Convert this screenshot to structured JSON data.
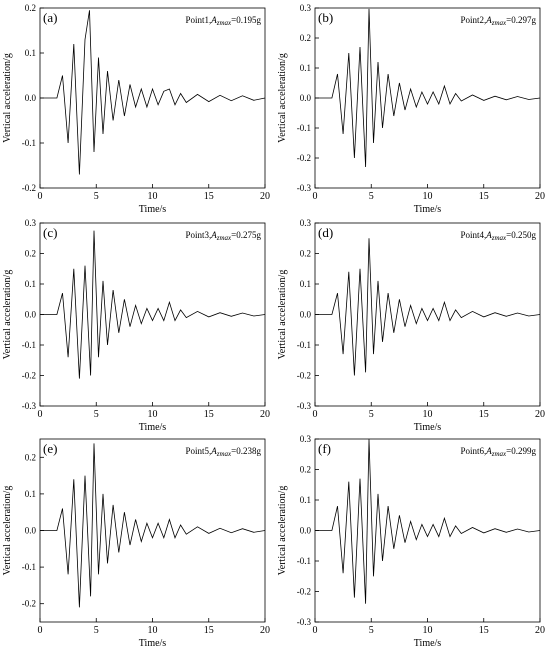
{
  "figure": {
    "panels": [
      {
        "panel_label": "(a)",
        "annotation": {
          "point": "Point1",
          "symbol": "A",
          "subscript": "zmax",
          "value": "=0.195g"
        }
      },
      {
        "panel_label": "(b)",
        "annotation": {
          "point": "Point2",
          "symbol": "A",
          "subscript": "zmax",
          "value": "=0.297g"
        }
      },
      {
        "panel_label": "(c)",
        "annotation": {
          "point": "Point3",
          "symbol": "A",
          "subscript": "zmax",
          "value": "=0.275g"
        }
      },
      {
        "panel_label": "(d)",
        "annotation": {
          "point": "Point4",
          "symbol": "A",
          "subscript": "zmax",
          "value": "=0.250g"
        }
      },
      {
        "panel_label": "(e)",
        "annotation": {
          "point": "Point5",
          "symbol": "A",
          "subscript": "zmax",
          "value": "=0.238g"
        }
      },
      {
        "panel_label": "(f)",
        "annotation": {
          "point": "Point6",
          "symbol": "A",
          "subscript": "zmax",
          "value": "=0.299g"
        }
      }
    ]
  },
  "chart_data": [
    {
      "type": "line",
      "xlabel": "Time/s",
      "ylabel": "Vertical acceleration/g",
      "xlim": [
        0,
        20
      ],
      "ylim": [
        -0.2,
        0.2
      ],
      "xticks": [
        "0",
        "5",
        "10",
        "15",
        "20"
      ],
      "yticks": [
        "-0.2",
        "-0.1",
        "0.0",
        "0.1",
        "0.2"
      ],
      "ytick_values": [
        -0.2,
        -0.1,
        0.0,
        0.1,
        0.2
      ],
      "grid": false,
      "series": [
        {
          "x": [
            0.0,
            1.5,
            2.0,
            2.5,
            3.0,
            3.5,
            4.0,
            4.4,
            4.8,
            5.2,
            5.6,
            6.0,
            6.5,
            7.0,
            7.5,
            8.0,
            8.5,
            9.0,
            9.5,
            10.0,
            10.5,
            11.0,
            11.5,
            12.0,
            12.5,
            13.0,
            14.0,
            15.0,
            16.0,
            17.0,
            18.0,
            19.0,
            20.0
          ],
          "y": [
            0.0,
            0.0,
            0.05,
            -0.1,
            0.12,
            -0.17,
            0.13,
            0.195,
            -0.12,
            0.09,
            -0.08,
            0.06,
            -0.05,
            0.04,
            -0.04,
            0.03,
            -0.02,
            0.02,
            -0.02,
            0.02,
            -0.015,
            0.015,
            0.02,
            -0.015,
            0.01,
            -0.01,
            0.008,
            -0.008,
            0.006,
            -0.006,
            0.005,
            -0.005,
            0.0
          ]
        }
      ]
    },
    {
      "type": "line",
      "xlabel": "Time/s",
      "ylabel": "Vertical acceleration/g",
      "xlim": [
        0,
        20
      ],
      "ylim": [
        -0.3,
        0.3
      ],
      "xticks": [
        "0",
        "5",
        "10",
        "15",
        "20"
      ],
      "yticks": [
        "-0.3",
        "-0.2",
        "-0.1",
        "0.0",
        "0.1",
        "0.2",
        "0.3"
      ],
      "ytick_values": [
        -0.3,
        -0.2,
        -0.1,
        0.0,
        0.1,
        0.2,
        0.3
      ],
      "grid": false,
      "series": [
        {
          "x": [
            0.0,
            1.5,
            2.0,
            2.5,
            3.0,
            3.5,
            4.0,
            4.5,
            4.8,
            5.2,
            5.6,
            6.0,
            6.5,
            7.0,
            7.5,
            8.0,
            8.5,
            9.0,
            9.5,
            10.0,
            10.5,
            11.0,
            11.5,
            12.0,
            12.5,
            13.0,
            14.0,
            15.0,
            16.0,
            17.0,
            18.0,
            19.0,
            20.0
          ],
          "y": [
            0.0,
            0.0,
            0.08,
            -0.12,
            0.15,
            -0.2,
            0.17,
            -0.23,
            0.297,
            -0.15,
            0.12,
            -0.1,
            0.08,
            -0.06,
            0.05,
            -0.04,
            0.03,
            -0.03,
            0.02,
            -0.02,
            0.02,
            -0.02,
            0.04,
            -0.02,
            0.015,
            -0.01,
            0.01,
            -0.008,
            0.006,
            -0.006,
            0.005,
            -0.005,
            0.0
          ]
        }
      ]
    },
    {
      "type": "line",
      "xlabel": "Time/s",
      "ylabel": "Vertical acceleration/g",
      "xlim": [
        0,
        20
      ],
      "ylim": [
        -0.3,
        0.3
      ],
      "xticks": [
        "0",
        "5",
        "10",
        "15",
        "20"
      ],
      "yticks": [
        "-0.3",
        "-0.2",
        "-0.1",
        "0.0",
        "0.1",
        "0.2",
        "0.3"
      ],
      "ytick_values": [
        -0.3,
        -0.2,
        -0.1,
        0.0,
        0.1,
        0.2,
        0.3
      ],
      "grid": false,
      "series": [
        {
          "x": [
            0.0,
            1.5,
            2.0,
            2.5,
            3.0,
            3.5,
            4.0,
            4.5,
            4.8,
            5.2,
            5.6,
            6.0,
            6.5,
            7.0,
            7.5,
            8.0,
            8.5,
            9.0,
            9.5,
            10.0,
            10.5,
            11.0,
            11.5,
            12.0,
            12.5,
            13.0,
            14.0,
            15.0,
            16.0,
            17.0,
            18.0,
            19.0,
            20.0
          ],
          "y": [
            0.0,
            0.0,
            0.07,
            -0.14,
            0.15,
            -0.21,
            0.16,
            -0.2,
            0.275,
            -0.14,
            0.11,
            -0.1,
            0.08,
            -0.06,
            0.05,
            -0.04,
            0.03,
            -0.03,
            0.02,
            -0.02,
            0.02,
            -0.02,
            0.04,
            -0.02,
            0.015,
            -0.01,
            0.01,
            -0.008,
            0.006,
            -0.006,
            0.005,
            -0.005,
            0.0
          ]
        }
      ]
    },
    {
      "type": "line",
      "xlabel": "Time/s",
      "ylabel": "Vertical acceleration/g",
      "xlim": [
        0,
        20
      ],
      "ylim": [
        -0.3,
        0.3
      ],
      "xticks": [
        "0",
        "5",
        "10",
        "15",
        "20"
      ],
      "yticks": [
        "-0.3",
        "-0.2",
        "-0.1",
        "0.0",
        "0.1",
        "0.2",
        "0.3"
      ],
      "ytick_values": [
        -0.3,
        -0.2,
        -0.1,
        0.0,
        0.1,
        0.2,
        0.3
      ],
      "grid": false,
      "series": [
        {
          "x": [
            0.0,
            1.5,
            2.0,
            2.5,
            3.0,
            3.5,
            4.0,
            4.5,
            4.8,
            5.2,
            5.6,
            6.0,
            6.5,
            7.0,
            7.5,
            8.0,
            8.5,
            9.0,
            9.5,
            10.0,
            10.5,
            11.0,
            11.5,
            12.0,
            12.5,
            13.0,
            14.0,
            15.0,
            16.0,
            17.0,
            18.0,
            19.0,
            20.0
          ],
          "y": [
            0.0,
            0.0,
            0.07,
            -0.13,
            0.14,
            -0.2,
            0.15,
            -0.19,
            0.25,
            -0.13,
            0.11,
            -0.09,
            0.07,
            -0.06,
            0.05,
            -0.04,
            0.03,
            -0.03,
            0.02,
            -0.02,
            0.02,
            -0.02,
            0.04,
            -0.02,
            0.015,
            -0.01,
            0.01,
            -0.008,
            0.006,
            -0.006,
            0.005,
            -0.005,
            0.0
          ]
        }
      ]
    },
    {
      "type": "line",
      "xlabel": "Time/s",
      "ylabel": "Vertical acceleration/g",
      "xlim": [
        0,
        20
      ],
      "ylim": [
        -0.25,
        0.25
      ],
      "xticks": [
        "0",
        "5",
        "10",
        "15",
        "20"
      ],
      "yticks": [
        "-0.2",
        "-0.1",
        "0.0",
        "0.1",
        "0.2"
      ],
      "ytick_values": [
        -0.2,
        -0.1,
        0.0,
        0.1,
        0.2
      ],
      "grid": false,
      "series": [
        {
          "x": [
            0.0,
            1.5,
            2.0,
            2.5,
            3.0,
            3.5,
            4.0,
            4.5,
            4.8,
            5.2,
            5.6,
            6.0,
            6.5,
            7.0,
            7.5,
            8.0,
            8.5,
            9.0,
            9.5,
            10.0,
            10.5,
            11.0,
            11.5,
            12.0,
            12.5,
            13.0,
            14.0,
            15.0,
            16.0,
            17.0,
            18.0,
            19.0,
            20.0
          ],
          "y": [
            0.0,
            0.0,
            0.06,
            -0.12,
            0.14,
            -0.21,
            0.15,
            -0.18,
            0.238,
            -0.12,
            0.1,
            -0.09,
            0.07,
            -0.06,
            0.05,
            -0.04,
            0.03,
            -0.03,
            0.02,
            -0.02,
            0.02,
            -0.02,
            0.03,
            -0.02,
            0.015,
            -0.01,
            0.01,
            -0.008,
            0.006,
            -0.006,
            0.005,
            -0.005,
            0.0
          ]
        }
      ]
    },
    {
      "type": "line",
      "xlabel": "Time/s",
      "ylabel": "Vertical acceleration/g",
      "xlim": [
        0,
        20
      ],
      "ylim": [
        -0.3,
        0.3
      ],
      "xticks": [
        "0",
        "5",
        "10",
        "15",
        "20"
      ],
      "yticks": [
        "-0.3",
        "-0.2",
        "-0.1",
        "0.0",
        "0.1",
        "0.2",
        "0.3"
      ],
      "ytick_values": [
        -0.3,
        -0.2,
        -0.1,
        0.0,
        0.1,
        0.2,
        0.3
      ],
      "grid": false,
      "series": [
        {
          "x": [
            0.0,
            1.5,
            2.0,
            2.5,
            3.0,
            3.5,
            4.0,
            4.5,
            4.8,
            5.2,
            5.6,
            6.0,
            6.5,
            7.0,
            7.5,
            8.0,
            8.5,
            9.0,
            9.5,
            10.0,
            10.5,
            11.0,
            11.5,
            12.0,
            12.5,
            13.0,
            14.0,
            15.0,
            16.0,
            17.0,
            18.0,
            19.0,
            20.0
          ],
          "y": [
            0.0,
            0.0,
            0.08,
            -0.14,
            0.16,
            -0.22,
            0.17,
            -0.24,
            0.299,
            -0.15,
            0.12,
            -0.1,
            0.08,
            -0.06,
            0.05,
            -0.04,
            0.03,
            -0.03,
            0.02,
            -0.02,
            0.02,
            -0.02,
            0.04,
            -0.02,
            0.015,
            -0.01,
            0.01,
            -0.008,
            0.006,
            -0.006,
            0.005,
            -0.005,
            0.0
          ]
        }
      ]
    }
  ]
}
